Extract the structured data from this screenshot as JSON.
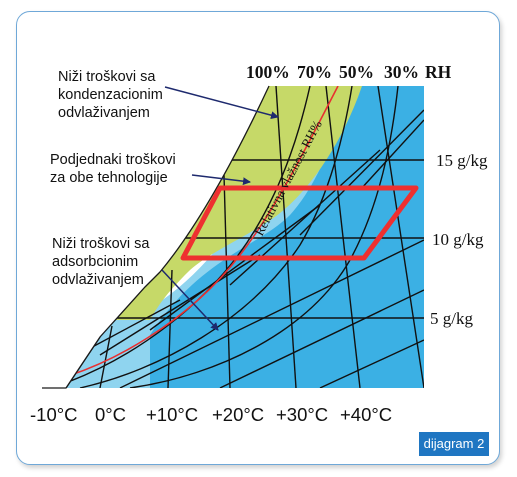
{
  "notes": {
    "condensation": "Niži troškovi sa\nkondenzacionim\nodvlaživanjem",
    "equal": "Podjednaki troškovi\nza obe tehnologije",
    "adsorption": "Niži troškovi sa\nadsorbcionim\nodvlaživanjem"
  },
  "rh_labels": [
    "100%",
    "70%",
    "50%",
    "30%",
    "RH"
  ],
  "moisture_labels": [
    "15 g/kg",
    "10 g/kg",
    "5 g/kg"
  ],
  "temperature_labels": [
    "-10°C",
    "0°C",
    "+10°C",
    "+20°C",
    "+30°C",
    "+40°C"
  ],
  "curve_label": "Relativna vlažnost RH%",
  "figure_tag": "dijagram 2",
  "colors": {
    "frame": "#6fa8d8",
    "zone_condensation": "#c6d968",
    "zone_adsorption_light": "#8fd4ef",
    "zone_adsorption_dark": "#3bb0e4",
    "equal_cost_box": "#ee3030",
    "tag_background": "#1f76c2"
  }
}
